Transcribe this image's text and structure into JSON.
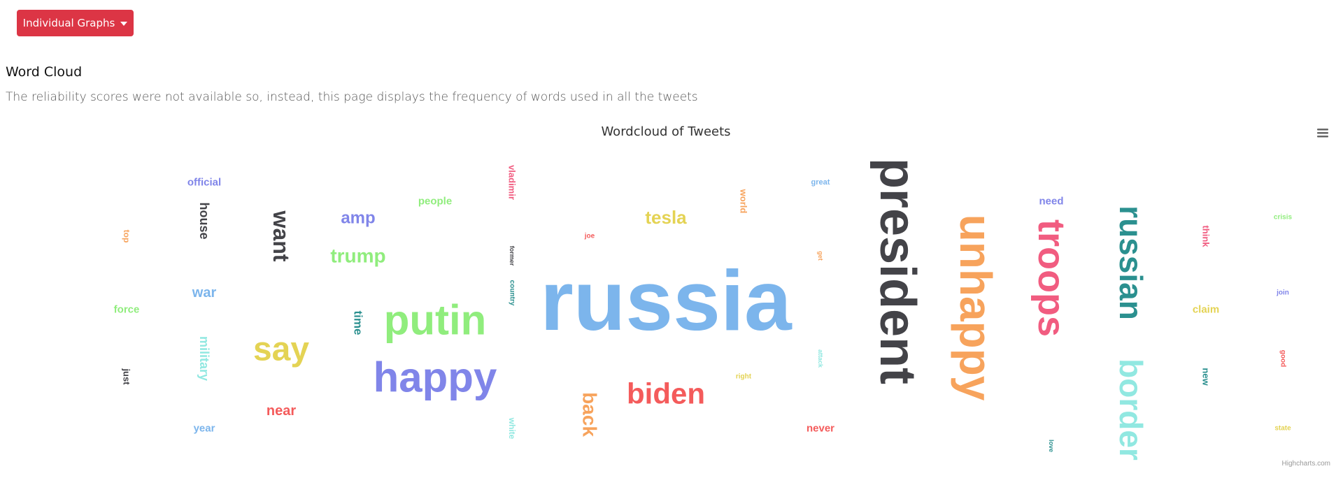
{
  "toolbar": {
    "dropdown_label": "Individual Graphs"
  },
  "section": {
    "title": "Word Cloud",
    "description": "The reliability scores were not available so, instead, this page displays the frequency of words used in all the tweets"
  },
  "chart_data": {
    "type": "wordcloud",
    "title": "Wordcloud of Tweets",
    "credits": "Highcharts.com",
    "words": [
      {
        "text": "russia",
        "weight": 100,
        "color": "#7cb5ec"
      },
      {
        "text": "president",
        "weight": 60,
        "color": "#434348"
      },
      {
        "text": "unhappy",
        "weight": 55,
        "color": "#f7a35c"
      },
      {
        "text": "happy",
        "weight": 44,
        "color": "#8085e9"
      },
      {
        "text": "putin",
        "weight": 44,
        "color": "#90ed7d"
      },
      {
        "text": "troops",
        "weight": 40,
        "color": "#f15c80"
      },
      {
        "text": "russian",
        "weight": 38,
        "color": "#2b908f"
      },
      {
        "text": "border",
        "weight": 32,
        "color": "#91e8e1"
      },
      {
        "text": "say",
        "weight": 30,
        "color": "#e4d354"
      },
      {
        "text": "biden",
        "weight": 29,
        "color": "#f45b5b"
      },
      {
        "text": "want",
        "weight": 22,
        "color": "#434348"
      },
      {
        "text": "back",
        "weight": 18,
        "color": "#f7a35c"
      },
      {
        "text": "trump",
        "weight": 17,
        "color": "#90ed7d"
      },
      {
        "text": "tesla",
        "weight": 16,
        "color": "#e4d354"
      },
      {
        "text": "amp",
        "weight": 16,
        "color": "#8085e9"
      },
      {
        "text": "near",
        "weight": 12,
        "color": "#f45b5b"
      },
      {
        "text": "war",
        "weight": 12,
        "color": "#7cb5ec"
      },
      {
        "text": "military",
        "weight": 12,
        "color": "#91e8e1"
      },
      {
        "text": "house",
        "weight": 11,
        "color": "#434348"
      },
      {
        "text": "time",
        "weight": 11,
        "color": "#2b908f"
      },
      {
        "text": "official",
        "weight": 10,
        "color": "#8085e9"
      },
      {
        "text": "people",
        "weight": 10,
        "color": "#90ed7d"
      },
      {
        "text": "need",
        "weight": 10,
        "color": "#8085e9"
      },
      {
        "text": "claim",
        "weight": 10,
        "color": "#e4d354"
      },
      {
        "text": "force",
        "weight": 10,
        "color": "#90ed7d"
      },
      {
        "text": "year",
        "weight": 10,
        "color": "#7cb5ec"
      },
      {
        "text": "never",
        "weight": 10,
        "color": "#f45b5b"
      },
      {
        "text": "vladimir",
        "weight": 9,
        "color": "#f15c80"
      },
      {
        "text": "world",
        "weight": 9,
        "color": "#f7a35c"
      },
      {
        "text": "think",
        "weight": 9,
        "color": "#f15c80"
      },
      {
        "text": "new",
        "weight": 9,
        "color": "#2b908f"
      },
      {
        "text": "just",
        "weight": 9,
        "color": "#434348"
      },
      {
        "text": "white",
        "weight": 8,
        "color": "#91e8e1"
      },
      {
        "text": "top",
        "weight": 8,
        "color": "#f7a35c"
      },
      {
        "text": "great",
        "weight": 7,
        "color": "#7cb5ec"
      },
      {
        "text": "crisis",
        "weight": 6,
        "color": "#90ed7d"
      },
      {
        "text": "join",
        "weight": 6,
        "color": "#8085e9"
      },
      {
        "text": "good",
        "weight": 6,
        "color": "#f45b5b"
      },
      {
        "text": "state",
        "weight": 6,
        "color": "#e4d354"
      },
      {
        "text": "right",
        "weight": 6,
        "color": "#e4d354"
      },
      {
        "text": "country",
        "weight": 6,
        "color": "#2b908f"
      },
      {
        "text": "former",
        "weight": 6,
        "color": "#434348"
      },
      {
        "text": "joe",
        "weight": 6,
        "color": "#f45b5b"
      },
      {
        "text": "attack",
        "weight": 6,
        "color": "#91e8e1"
      },
      {
        "text": "get",
        "weight": 6,
        "color": "#f7a35c"
      },
      {
        "text": "love",
        "weight": 6,
        "color": "#2b908f"
      }
    ]
  }
}
